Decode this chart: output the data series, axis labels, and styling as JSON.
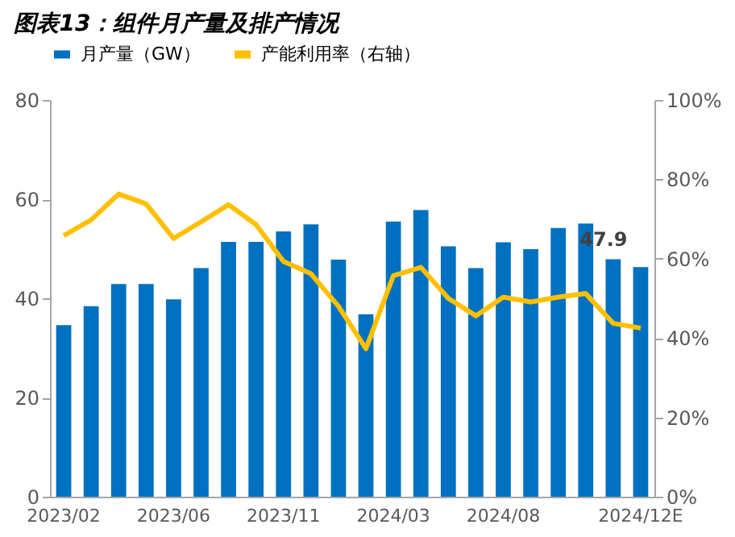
{
  "chart_data": {
    "type": "bar",
    "title": "图表13：组件月产量及排产情况",
    "categories": [
      "2023/02",
      null,
      null,
      null,
      "2023/06",
      null,
      null,
      null,
      "2023/11",
      null,
      null,
      null,
      "2024/03",
      null,
      null,
      null,
      "2024/08",
      null,
      null,
      null,
      null,
      "2024/12E"
    ],
    "series": [
      {
        "name": "月产量（GW）",
        "color": "#0070c0",
        "values": [
          34.6,
          38.4,
          42.9,
          42.9,
          39.8,
          46.1,
          51.4,
          51.4,
          53.5,
          54.9,
          47.8,
          36.8,
          55.5,
          57.8,
          50.5,
          46.1,
          51.3,
          49.9,
          54.2,
          55.1,
          47.9,
          46.3
        ],
        "value_labels": [
          null,
          null,
          null,
          null,
          null,
          null,
          null,
          null,
          null,
          null,
          null,
          null,
          null,
          null,
          null,
          null,
          null,
          null,
          null,
          null,
          "47.9",
          null
        ]
      },
      {
        "name": "产能利用率（右轴）",
        "type": "line",
        "axis": "y2",
        "color": "#ffc000",
        "values": [
          65.8,
          69.8,
          76.3,
          73.8,
          65.1,
          69.3,
          73.6,
          68.6,
          59.3,
          56.2,
          48,
          37.3,
          55.7,
          57.8,
          50.0,
          45.6,
          50.3,
          49.1,
          50.3,
          51.2,
          43.7,
          42.5
        ]
      }
    ],
    "ylim": [
      0,
      80
    ],
    "yticks": [
      0,
      20,
      40,
      60,
      80
    ],
    "y2lim": [
      0,
      100
    ],
    "y2ticks": [
      {
        "value": 0,
        "label": "0%"
      },
      {
        "value": 20,
        "label": "20%"
      },
      {
        "value": 40,
        "label": "40%"
      },
      {
        "value": 60,
        "label": "60%"
      },
      {
        "value": 80,
        "label": "80%"
      },
      {
        "value": 100,
        "label": "100%"
      }
    ],
    "grid": false,
    "legend": "top",
    "line_style": "solid",
    "marker": "none"
  }
}
